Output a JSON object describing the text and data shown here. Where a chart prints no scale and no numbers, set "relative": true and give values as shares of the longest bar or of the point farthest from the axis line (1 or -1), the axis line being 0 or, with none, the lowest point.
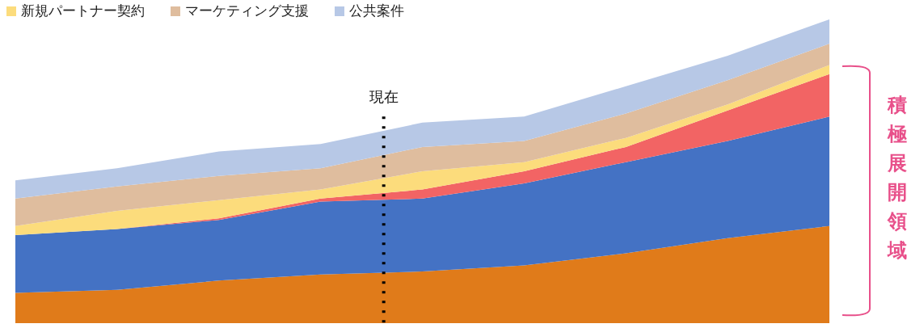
{
  "chart_data": {
    "type": "area",
    "stacked": true,
    "relative": true,
    "categories": [
      null,
      null,
      null,
      null,
      null,
      null,
      null,
      null,
      null
    ],
    "tick_labels": false,
    "legend": "top left",
    "series": [
      {
        "color": "#e07b1a",
        "values": [
          0.1,
          0.11,
          0.14,
          0.16,
          0.17,
          0.19,
          0.23,
          0.28,
          0.32
        ]
      },
      {
        "color": "#4472c4",
        "values": [
          0.19,
          0.2,
          0.2,
          0.24,
          0.24,
          0.27,
          0.3,
          0.32,
          0.36
        ]
      },
      {
        "color": "#f26464",
        "values": [
          0,
          0,
          0.005,
          0.01,
          0.03,
          0.04,
          0.05,
          0.1,
          0.14
        ]
      },
      {
        "name": "新規パートナー契約",
        "color": "#fcdc7c",
        "values": [
          0.03,
          0.06,
          0.06,
          0.03,
          0.06,
          0.03,
          0.03,
          0.02,
          0.03
        ]
      },
      {
        "name": "マーケティング支援",
        "color": "#dfbd9e",
        "values": [
          0.09,
          0.08,
          0.08,
          0.07,
          0.08,
          0.07,
          0.08,
          0.08,
          0.07
        ]
      },
      {
        "name": "公共案件",
        "color": "#b7c8e6",
        "values": [
          0.06,
          0.06,
          0.08,
          0.08,
          0.08,
          0.08,
          0.09,
          0.08,
          0.08
        ]
      }
    ],
    "annotations": [
      "現在",
      "積極展開領域"
    ]
  }
}
